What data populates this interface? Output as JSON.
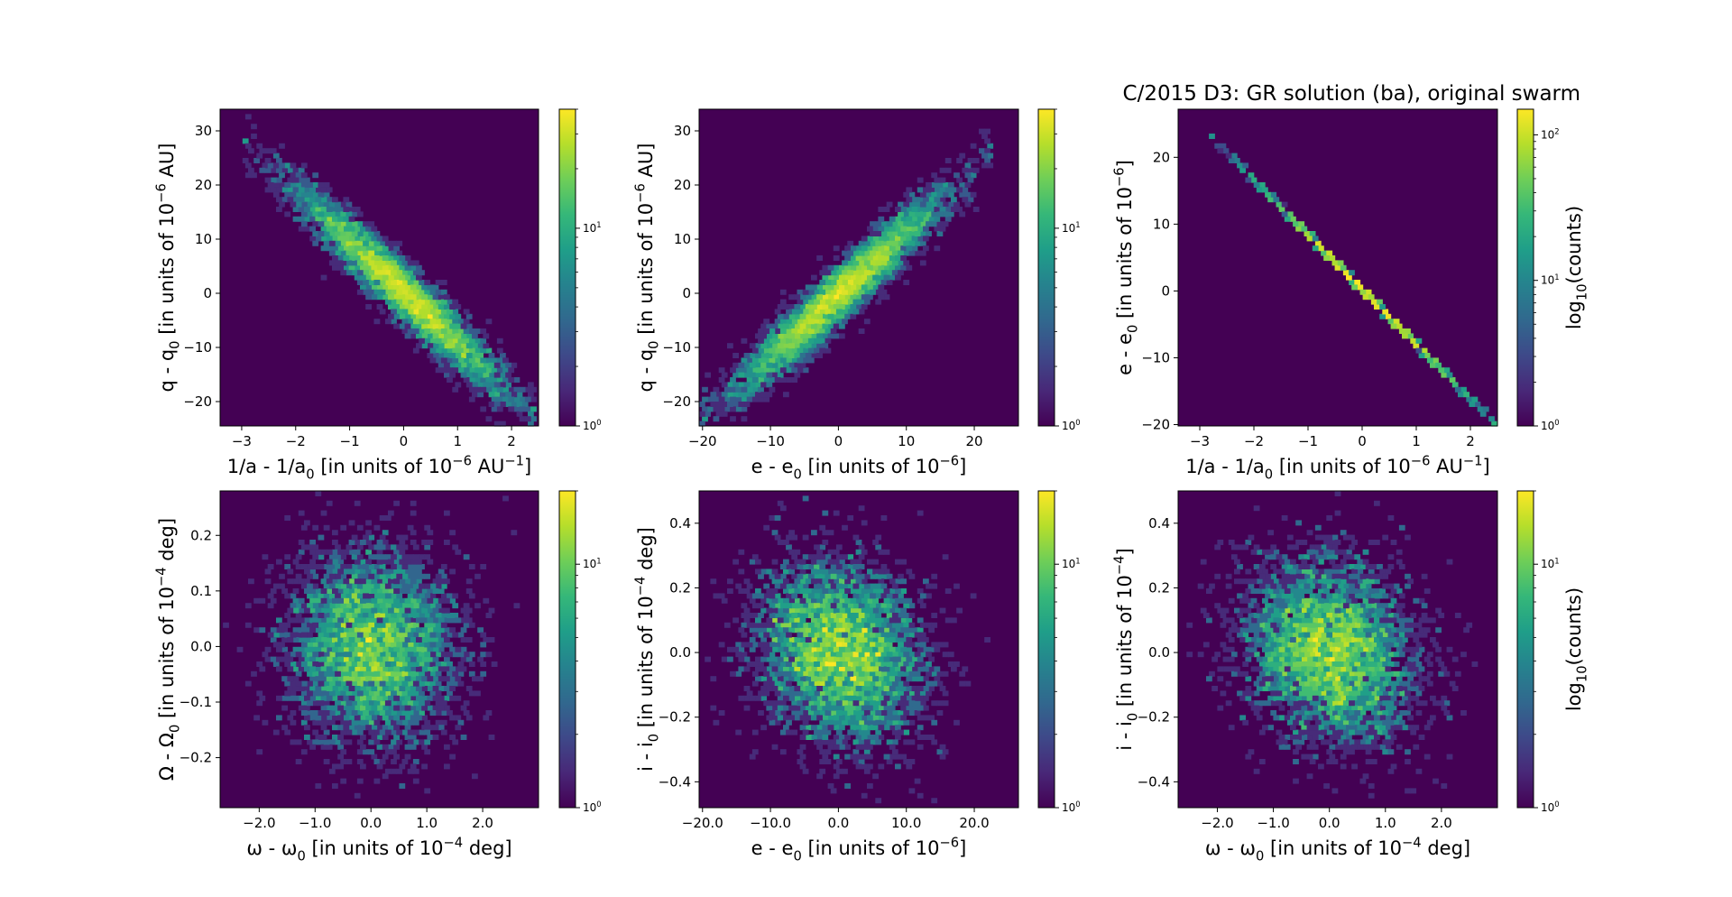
{
  "figure_title": "C/2015 D3: GR solution (ba), original swarm",
  "colormap": [
    "#440154",
    "#482878",
    "#3e4989",
    "#31688e",
    "#26828e",
    "#1f9e89",
    "#35b779",
    "#6ece58",
    "#b5de2b",
    "#fde725"
  ],
  "chart_data": [
    {
      "type": "heatmap",
      "subtype": "hexbin",
      "xlabel": "1/a - 1/a<sub>0</sub> [in units of 10<sup>−6</sup> AU<sup>−1</sup>]",
      "ylabel": "q - q<sub>0</sub> [in units of 10<sup>−6</sup> AU]",
      "xlim": [
        -3.4,
        2.5
      ],
      "ylim": [
        -24.5,
        34.0
      ],
      "xticks": [
        -3,
        -2,
        -1,
        0,
        1,
        2
      ],
      "yticks": [
        -20,
        -10,
        0,
        10,
        20,
        30
      ],
      "x_range": [
        -2.9,
        2.4
      ],
      "y_range": [
        -23,
        27
      ],
      "slope": -9.4,
      "scatter": [
        0.45,
        2.6
      ],
      "density": "line",
      "colorbar": {
        "scale": "log",
        "label": "",
        "ticks": [
          1,
          10
        ],
        "vmax": 40
      }
    },
    {
      "type": "heatmap",
      "subtype": "hexbin",
      "xlabel": "e - e<sub>0</sub> [in units of 10<sup>−6</sup>]",
      "ylabel": "q - q<sub>0</sub> [in units of 10<sup>−6</sup> AU]",
      "xlim": [
        -20.5,
        26.5
      ],
      "ylim": [
        -24.5,
        34.0
      ],
      "xticks": [
        -20,
        -10,
        0,
        10,
        20
      ],
      "yticks": [
        -20,
        -10,
        0,
        10,
        20,
        30
      ],
      "x_range": [
        -20,
        22
      ],
      "y_range": [
        -23,
        25
      ],
      "slope": 1.15,
      "scatter": [
        3.5,
        2.6
      ],
      "density": "line",
      "colorbar": {
        "scale": "log",
        "label": "",
        "ticks": [
          1,
          10
        ],
        "vmax": 40
      }
    },
    {
      "type": "heatmap",
      "subtype": "hexbin",
      "xlabel": "1/a - 1/a<sub>0</sub> [in units of 10<sup>−6</sup> AU<sup>−1</sup>]",
      "ylabel": "e - e<sub>0</sub> [in units of 10<sup>−6</sup>]",
      "xlim": [
        -3.4,
        2.5
      ],
      "ylim": [
        -20.2,
        27.2
      ],
      "xticks": [
        -3,
        -2,
        -1,
        0,
        1,
        2
      ],
      "yticks": [
        -20,
        -10,
        0,
        10,
        20
      ],
      "x_range": [
        -2.8,
        2.4
      ],
      "y_range": [
        -20,
        23
      ],
      "slope": -8.2,
      "scatter": [
        0.55,
        0
      ],
      "density": "thin",
      "colorbar": {
        "scale": "log",
        "label": "log<sub>10</sub>(counts)",
        "ticks": [
          1,
          10,
          100
        ],
        "vmax": 150
      }
    },
    {
      "type": "heatmap",
      "subtype": "hexbin",
      "xlabel": "ω - ω<sub>0</sub> [in units of 10<sup>−4</sup> deg]",
      "ylabel": "Ω - Ω<sub>0</sub> [in units of 10<sup>−4</sup> deg]",
      "xlim": [
        -2.7,
        3.0
      ],
      "ylim": [
        -0.29,
        0.28
      ],
      "xticks": [
        -2,
        -1,
        0,
        1,
        2
      ],
      "yticks": [
        -0.2,
        -0.1,
        0.0,
        0.1,
        0.2
      ],
      "tick_decimals": 1,
      "x_range": [
        -2.6,
        2.9
      ],
      "y_range": [
        -0.27,
        0.26
      ],
      "slope": 0,
      "scatter": [
        0.75,
        0.085
      ],
      "density": "blob",
      "colorbar": {
        "scale": "log",
        "label": "",
        "ticks": [
          1,
          10
        ],
        "vmax": 20
      }
    },
    {
      "type": "heatmap",
      "subtype": "hexbin",
      "xlabel": "e - e<sub>0</sub> [in units of 10<sup>−6</sup>]",
      "ylabel": "i - i<sub>0</sub> [in units of 10<sup>−4</sup> deg]",
      "xlim": [
        -20.5,
        26.5
      ],
      "ylim": [
        -0.48,
        0.5
      ],
      "xticks": [
        -20,
        -10,
        0,
        10,
        20
      ],
      "yticks": [
        -0.4,
        -0.2,
        0.0,
        0.2,
        0.4
      ],
      "tick_decimals": 1,
      "x_range": [
        -20,
        25
      ],
      "y_range": [
        -0.46,
        0.49
      ],
      "slope": -0.004,
      "scatter": [
        6.0,
        0.14
      ],
      "density": "blob",
      "colorbar": {
        "scale": "log",
        "label": "",
        "ticks": [
          1,
          10
        ],
        "vmax": 20
      }
    },
    {
      "type": "heatmap",
      "subtype": "hexbin",
      "xlabel": "ω - ω<sub>0</sub> [in units of 10<sup>−4</sup> deg]",
      "ylabel": "i - i<sub>0</sub> [in units of 10<sup>−4</sup>]",
      "xlim": [
        -2.7,
        3.0
      ],
      "ylim": [
        -0.48,
        0.5
      ],
      "xticks": [
        -2,
        -1,
        0,
        1,
        2
      ],
      "yticks": [
        -0.4,
        -0.2,
        0.0,
        0.2,
        0.4
      ],
      "tick_decimals": 1,
      "x_range": [
        -2.6,
        2.9
      ],
      "y_range": [
        -0.46,
        0.49
      ],
      "slope": -0.03,
      "scatter": [
        0.75,
        0.14
      ],
      "density": "blob",
      "colorbar": {
        "scale": "log",
        "label": "log<sub>10</sub>(counts)",
        "ticks": [
          1,
          10
        ],
        "vmax": 20
      }
    }
  ]
}
